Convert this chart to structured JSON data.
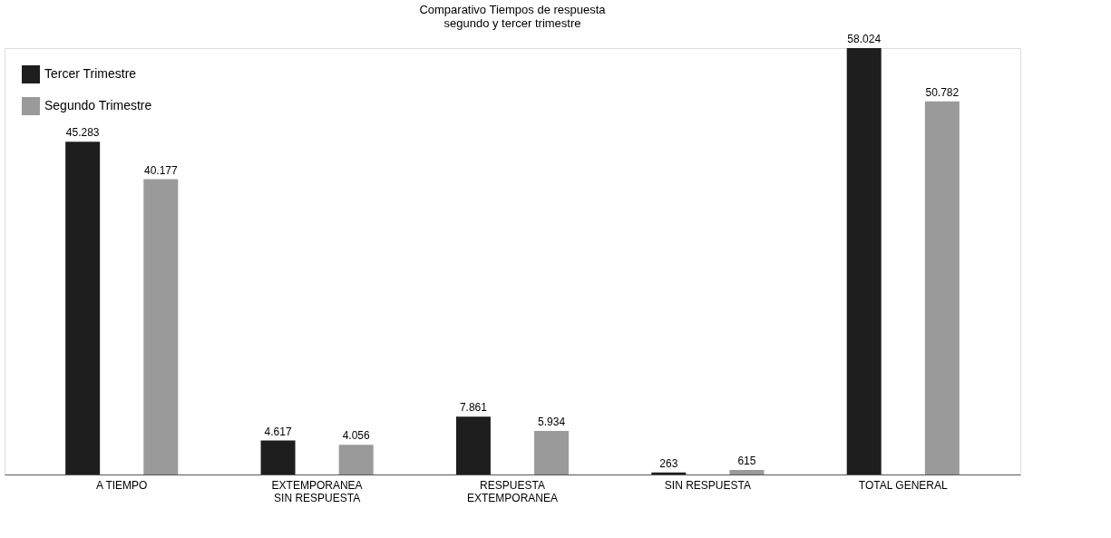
{
  "chart_data": {
    "type": "bar",
    "title": "Comparativo Tiempos de respuesta\nsegundo  y tercer trimestre",
    "categories": [
      "A TIEMPO",
      "EXTEMPORANEA\nSIN RESPUESTA",
      "RESPUESTA\nEXTEMPORANEA",
      "SIN RESPUESTA",
      "TOTAL GENERAL"
    ],
    "series": [
      {
        "name": "Tercer Trimestre",
        "color": "#1e1e1e",
        "values": [
          45283,
          4617,
          7861,
          263,
          58024
        ],
        "value_labels": [
          "45.283",
          "4.617",
          "7.861",
          "263",
          "58.024"
        ]
      },
      {
        "name": "Segundo Trimestre",
        "color": "#9a9a9a",
        "values": [
          40177,
          4056,
          5934,
          615,
          50782
        ],
        "value_labels": [
          "40.177",
          "4.056",
          "5.934",
          "615",
          "50.782"
        ]
      }
    ],
    "legend": "top left",
    "grid": false
  }
}
